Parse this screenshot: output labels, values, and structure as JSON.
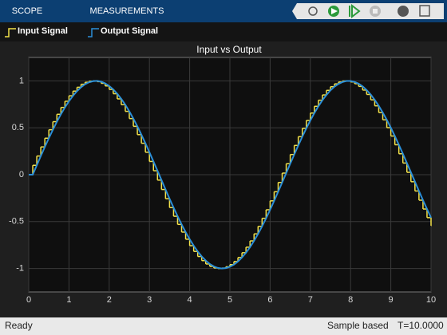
{
  "toolbar": {
    "tabs": [
      "SCOPE",
      "MEASUREMENTS"
    ]
  },
  "status_bar": {
    "status": "Ready",
    "mode": "Sample based",
    "time": "T=10.0000"
  },
  "chart_data": {
    "type": "line",
    "title": "Input vs Output",
    "x": [
      0,
      0.1,
      0.2,
      0.3,
      0.4,
      0.5,
      0.6,
      0.7,
      0.8,
      0.9,
      1,
      1.1,
      1.2,
      1.3,
      1.4,
      1.5,
      1.6,
      1.7,
      1.8,
      1.9,
      2,
      2.1,
      2.2,
      2.3,
      2.4,
      2.5,
      2.6,
      2.7,
      2.8,
      2.9,
      3,
      3.1,
      3.2,
      3.3,
      3.4,
      3.5,
      3.6,
      3.7,
      3.8,
      3.9,
      4,
      4.1,
      4.2,
      4.3,
      4.4,
      4.5,
      4.6,
      4.7,
      4.8,
      4.9,
      5,
      5.1,
      5.2,
      5.3,
      5.4,
      5.5,
      5.6,
      5.7,
      5.8,
      5.9,
      6,
      6.1,
      6.2,
      6.3,
      6.4,
      6.5,
      6.6,
      6.7,
      6.8,
      6.9,
      7,
      7.1,
      7.2,
      7.3,
      7.4,
      7.5,
      7.6,
      7.7,
      7.8,
      7.9,
      8,
      8.1,
      8.2,
      8.3,
      8.4,
      8.5,
      8.6,
      8.7,
      8.8,
      8.9,
      9,
      9.1,
      9.2,
      9.3,
      9.4,
      9.5,
      9.6,
      9.7,
      9.8,
      9.9,
      10
    ],
    "series": [
      {
        "name": "Input Signal",
        "color": "#f2e14a",
        "style": "step",
        "values": [
          0,
          0.1,
          0.199,
          0.296,
          0.389,
          0.479,
          0.565,
          0.644,
          0.717,
          0.783,
          0.841,
          0.891,
          0.932,
          0.964,
          0.985,
          0.997,
          1,
          0.992,
          0.974,
          0.946,
          0.909,
          0.863,
          0.808,
          0.746,
          0.675,
          0.598,
          0.516,
          0.427,
          0.335,
          0.239,
          0.141,
          0.042,
          -0.058,
          -0.158,
          -0.256,
          -0.351,
          -0.443,
          -0.53,
          -0.612,
          -0.688,
          -0.757,
          -0.818,
          -0.872,
          -0.916,
          -0.952,
          -0.978,
          -0.994,
          -1,
          -0.996,
          -0.982,
          -0.959,
          -0.926,
          -0.883,
          -0.832,
          -0.773,
          -0.706,
          -0.631,
          -0.551,
          -0.465,
          -0.374,
          -0.279,
          -0.182,
          -0.083,
          0.017,
          0.117,
          0.215,
          0.312,
          0.405,
          0.494,
          0.578,
          0.657,
          0.729,
          0.794,
          0.85,
          0.899,
          0.938,
          0.968,
          0.988,
          0.999,
          0.999,
          0.989,
          0.97,
          0.941,
          0.902,
          0.855,
          0.798,
          0.734,
          0.662,
          0.585,
          0.501,
          0.412,
          0.319,
          0.223,
          0.124,
          0.025,
          -0.075,
          -0.174,
          -0.272,
          -0.366,
          -0.458,
          -0.544
        ]
      },
      {
        "name": "Output Signal",
        "color": "#2b8fd8",
        "style": "line",
        "values": [
          0,
          0,
          0.1,
          0.199,
          0.296,
          0.389,
          0.479,
          0.565,
          0.644,
          0.717,
          0.783,
          0.841,
          0.891,
          0.932,
          0.964,
          0.985,
          0.997,
          1,
          0.992,
          0.974,
          0.946,
          0.909,
          0.863,
          0.808,
          0.746,
          0.675,
          0.598,
          0.516,
          0.427,
          0.335,
          0.239,
          0.141,
          0.042,
          -0.058,
          -0.158,
          -0.256,
          -0.351,
          -0.443,
          -0.53,
          -0.612,
          -0.688,
          -0.757,
          -0.818,
          -0.872,
          -0.916,
          -0.952,
          -0.978,
          -0.994,
          -1,
          -0.996,
          -0.982,
          -0.959,
          -0.926,
          -0.883,
          -0.832,
          -0.773,
          -0.706,
          -0.631,
          -0.551,
          -0.465,
          -0.374,
          -0.279,
          -0.182,
          -0.083,
          0.017,
          0.117,
          0.215,
          0.312,
          0.405,
          0.494,
          0.578,
          0.657,
          0.729,
          0.794,
          0.85,
          0.899,
          0.938,
          0.968,
          0.988,
          0.999,
          0.999,
          0.989,
          0.97,
          0.941,
          0.902,
          0.855,
          0.798,
          0.734,
          0.662,
          0.585,
          0.501,
          0.412,
          0.319,
          0.223,
          0.124,
          0.025,
          -0.075,
          -0.174,
          -0.272,
          -0.366,
          -0.458
        ]
      }
    ],
    "xlim": [
      0,
      10
    ],
    "xticks": [
      0,
      1,
      2,
      3,
      4,
      5,
      6,
      7,
      8,
      9,
      10
    ],
    "ylim": [
      -1.25,
      1.25
    ],
    "yticks": [
      -1,
      -0.5,
      0,
      0.5,
      1
    ],
    "grid": true
  }
}
